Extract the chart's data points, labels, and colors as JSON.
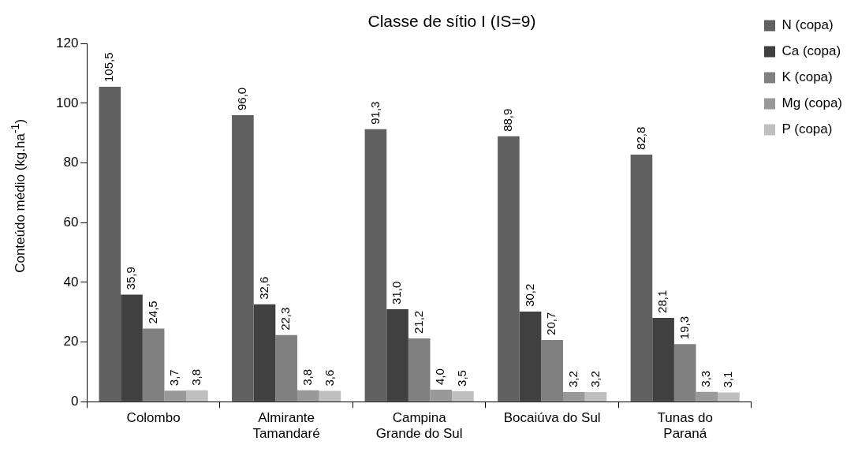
{
  "chart_data": {
    "type": "bar",
    "title": "Classe de sítio I (IS=9)",
    "ylabel": "Conteúdo médio (kg.ha$^{-1}$)",
    "categories": [
      "Colombo",
      "Almirante\nTamandaré",
      "Campina\nGrande do Sul",
      "Bocaiúva do Sul",
      "Tunas do\nParaná"
    ],
    "series": [
      {
        "name": "N (copa)",
        "color": "#606060",
        "values": [
          105.5,
          96.0,
          91.3,
          88.9,
          82.8
        ],
        "value_labels": [
          "105,5",
          "96,0",
          "91,3",
          "88,9",
          "82,8"
        ]
      },
      {
        "name": "Ca (copa)",
        "color": "#404040",
        "values": [
          35.9,
          32.6,
          31.0,
          30.2,
          28.1
        ],
        "value_labels": [
          "35,9",
          "32,6",
          "31,0",
          "30,2",
          "28,1"
        ]
      },
      {
        "name": "K (copa)",
        "color": "#808080",
        "values": [
          24.5,
          22.3,
          21.2,
          20.7,
          19.3
        ],
        "value_labels": [
          "24,5",
          "22,3",
          "21,2",
          "20,7",
          "19,3"
        ]
      },
      {
        "name": "Mg (copa)",
        "color": "#999999",
        "values": [
          3.7,
          3.8,
          4.0,
          3.2,
          3.3
        ],
        "value_labels": [
          "3,7",
          "3,8",
          "4,0",
          "3,2",
          "3,3"
        ]
      },
      {
        "name": "P (copa)",
        "color": "#bfbfbf",
        "values": [
          3.8,
          3.6,
          3.5,
          3.2,
          3.1
        ],
        "value_labels": [
          "3,8",
          "3,6",
          "3,5",
          "3,2",
          "3,1"
        ]
      }
    ],
    "ylim": [
      0,
      120
    ],
    "yticks": [
      0,
      20,
      40,
      60,
      80,
      100,
      120
    ],
    "grid": false,
    "legend": "top right"
  }
}
